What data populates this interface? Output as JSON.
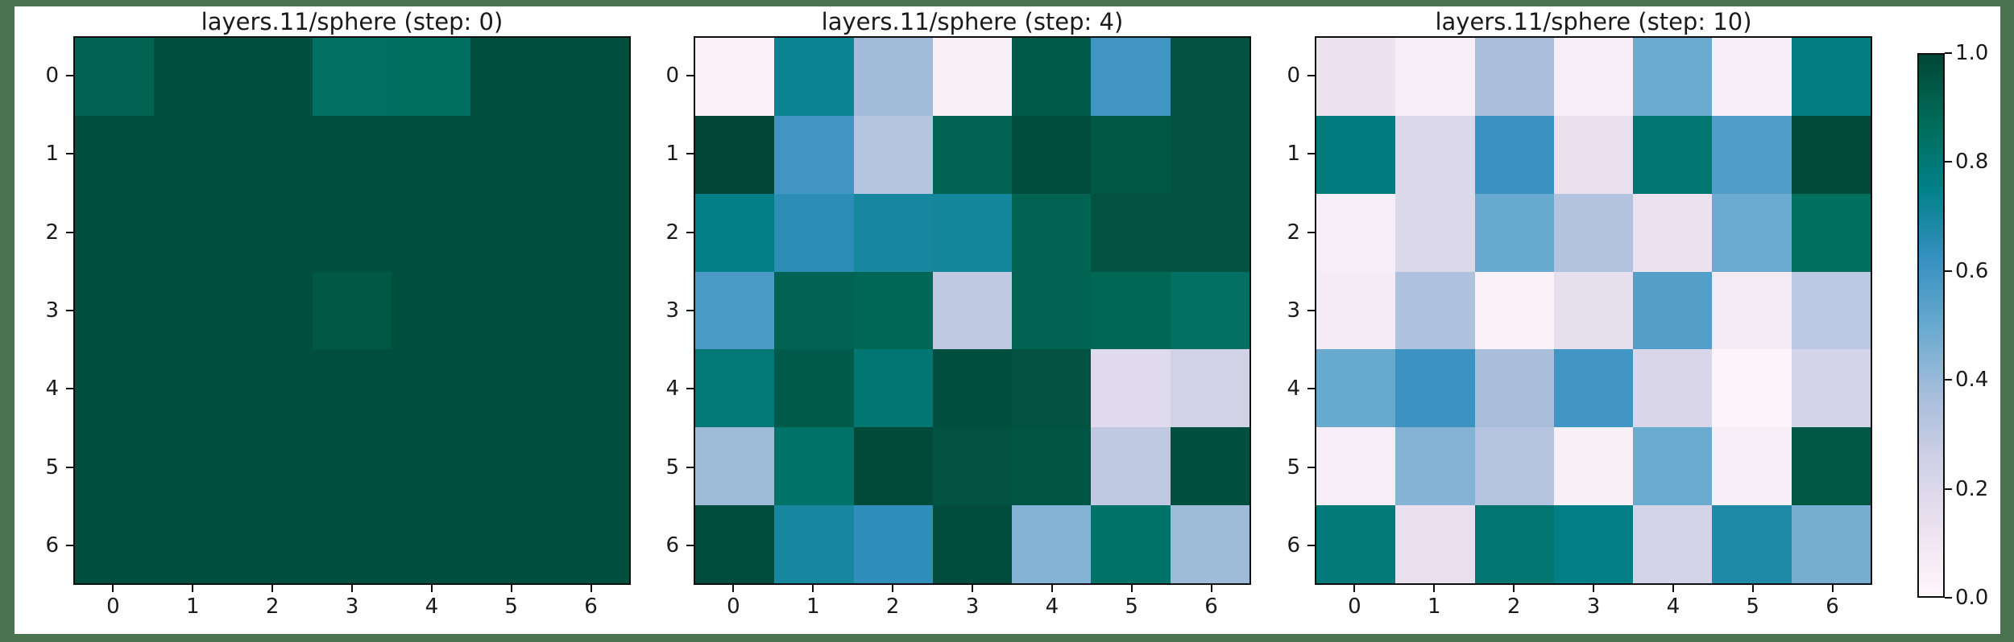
{
  "figure": {
    "background_color": "#4a7350",
    "canvas_color": "#ffffff",
    "axes_border_color": "#0f0f0f",
    "text_color": "#1a1a1a"
  },
  "chart_data": [
    {
      "type": "heatmap",
      "title": "layers.11/sphere (step: 0)",
      "x_ticks": [
        "0",
        "1",
        "2",
        "3",
        "4",
        "5",
        "6"
      ],
      "y_ticks": [
        "0",
        "1",
        "2",
        "3",
        "4",
        "5",
        "6"
      ],
      "vmin": 0.0,
      "vmax": 1.0,
      "colormap": "PuBuGn",
      "values": [
        [
          0.9,
          0.97,
          0.97,
          0.85,
          0.86,
          0.97,
          0.97
        ],
        [
          0.97,
          0.97,
          0.97,
          0.97,
          0.97,
          0.97,
          0.97
        ],
        [
          0.97,
          0.97,
          0.97,
          0.97,
          0.97,
          0.97,
          0.97
        ],
        [
          0.97,
          0.97,
          0.97,
          0.94,
          0.97,
          0.97,
          0.97
        ],
        [
          0.97,
          0.97,
          0.97,
          0.97,
          0.97,
          0.97,
          0.97
        ],
        [
          0.97,
          0.97,
          0.97,
          0.97,
          0.97,
          0.97,
          0.97
        ],
        [
          0.97,
          0.97,
          0.97,
          0.97,
          0.97,
          0.97,
          0.97
        ]
      ]
    },
    {
      "type": "heatmap",
      "title": "layers.11/sphere (step: 4)",
      "x_ticks": [
        "0",
        "1",
        "2",
        "3",
        "4",
        "5",
        "6"
      ],
      "y_ticks": [
        "0",
        "1",
        "2",
        "3",
        "4",
        "5",
        "6"
      ],
      "vmin": 0.0,
      "vmax": 1.0,
      "colormap": "PuBuGn",
      "values": [
        [
          0.03,
          0.73,
          0.38,
          0.04,
          0.93,
          0.6,
          0.96
        ],
        [
          1.0,
          0.6,
          0.33,
          0.9,
          0.98,
          0.94,
          0.96
        ],
        [
          0.76,
          0.65,
          0.7,
          0.71,
          0.9,
          0.96,
          0.96
        ],
        [
          0.57,
          0.9,
          0.89,
          0.3,
          0.9,
          0.89,
          0.85
        ],
        [
          0.8,
          0.93,
          0.81,
          0.97,
          0.96,
          0.18,
          0.24
        ],
        [
          0.39,
          0.84,
          0.99,
          0.96,
          0.95,
          0.3,
          0.97
        ],
        [
          0.98,
          0.7,
          0.64,
          0.98,
          0.44,
          0.84,
          0.39
        ]
      ]
    },
    {
      "type": "heatmap",
      "title": "layers.11/sphere (step: 10)",
      "x_ticks": [
        "0",
        "1",
        "2",
        "3",
        "4",
        "5",
        "6"
      ],
      "y_ticks": [
        "0",
        "1",
        "2",
        "3",
        "4",
        "5",
        "6"
      ],
      "vmin": 0.0,
      "vmax": 1.0,
      "colormap": "PuBuGn",
      "values": [
        [
          0.12,
          0.06,
          0.36,
          0.06,
          0.49,
          0.06,
          0.77
        ],
        [
          0.78,
          0.2,
          0.62,
          0.14,
          0.82,
          0.56,
          0.99
        ],
        [
          0.05,
          0.2,
          0.5,
          0.34,
          0.13,
          0.49,
          0.86
        ],
        [
          0.07,
          0.35,
          0.03,
          0.15,
          0.55,
          0.08,
          0.31
        ],
        [
          0.5,
          0.61,
          0.37,
          0.6,
          0.21,
          0.02,
          0.23
        ],
        [
          0.06,
          0.44,
          0.33,
          0.04,
          0.49,
          0.05,
          0.94
        ],
        [
          0.79,
          0.14,
          0.82,
          0.76,
          0.23,
          0.68,
          0.47
        ]
      ]
    }
  ],
  "colorbar": {
    "min": 0.0,
    "max": 1.0,
    "colormap": "PuBuGn",
    "colormap_stops": [
      "#fff7fb",
      "#ece2f0",
      "#d0d1e6",
      "#a6bddb",
      "#67a9cf",
      "#3690c0",
      "#02818a",
      "#016c59",
      "#014636"
    ],
    "ticks": [
      {
        "label": "1.0",
        "value": 1.0
      },
      {
        "label": "0.8",
        "value": 0.8
      },
      {
        "label": "0.6",
        "value": 0.6
      },
      {
        "label": "0.4",
        "value": 0.4
      },
      {
        "label": "0.2",
        "value": 0.2
      },
      {
        "label": "0.0",
        "value": 0.0
      }
    ]
  }
}
